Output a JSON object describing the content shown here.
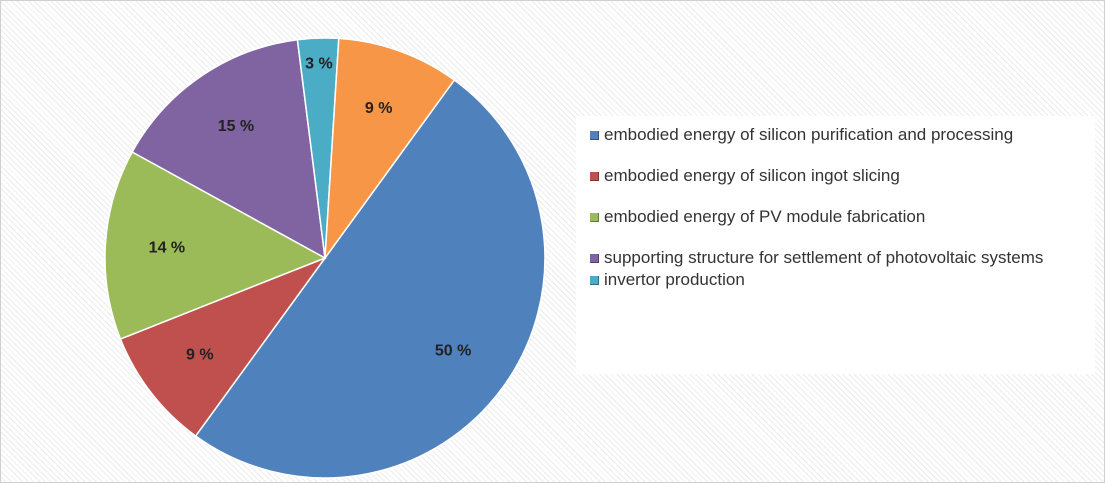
{
  "chart_data": {
    "type": "pie",
    "categories": [
      "embodied energy of silicon purification and processing",
      "embodied energy of silicon ingot slicing",
      "embodied energy of PV module fabrication",
      "supporting structure for settlement of photovoltaic systems",
      "invertor production",
      null
    ],
    "values": [
      50,
      9,
      14,
      15,
      3,
      9
    ],
    "value_labels": [
      "50 %",
      "9 %",
      "14 %",
      "15 %",
      "3 %",
      "9 %"
    ],
    "colors": [
      "#4f81bd",
      "#c0504d",
      "#9bbb59",
      "#8064a2",
      "#4bacc6",
      "#f79646"
    ],
    "legend": "right"
  }
}
